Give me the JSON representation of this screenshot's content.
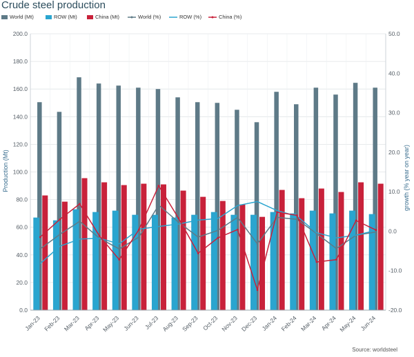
{
  "chart_data": {
    "type": "bar",
    "title": "Crude steel production",
    "source": "Source: worldsteel",
    "categories": [
      "Jan-23",
      "Feb-23",
      "Mar-23",
      "Apr-23",
      "May-23",
      "Jun-23",
      "Jul-23",
      "Aug-23",
      "Sep-23",
      "Oct-23",
      "Nov-23",
      "Dec-23",
      "Jan-24",
      "Feb-24",
      "Mar-24",
      "Apr-24",
      "May-24",
      "Jun-24"
    ],
    "ylabel_left": "Production (Mt)",
    "ylabel_right": "growth (% year on year)",
    "ylim_left": [
      0,
      200
    ],
    "ylim_right": [
      -20,
      50
    ],
    "yticks_left": [
      "0.0",
      "20.0",
      "40.0",
      "60.0",
      "80.0",
      "100.0",
      "120.0",
      "140.0",
      "160.0",
      "180.0",
      "200.0"
    ],
    "yticks_right": [
      "-20.0",
      "-10.0",
      "0.0",
      "10.0",
      "20.0",
      "30.0",
      "40.0",
      "50.0"
    ],
    "bar_series": [
      {
        "name": "World (Mt)",
        "color": "#5e7a87",
        "values": [
          150.5,
          143.5,
          168.5,
          164,
          162.5,
          161,
          160,
          154,
          150.5,
          150,
          145,
          136,
          158,
          149,
          161,
          156,
          164.5,
          161
        ]
      },
      {
        "name": "ROW (Mt)",
        "color": "#2aa5cf",
        "values": [
          67,
          65,
          73,
          71,
          72,
          69,
          69,
          67,
          69,
          71,
          69,
          69,
          71,
          70,
          72,
          70,
          72,
          69.5
        ]
      },
      {
        "name": "China (Mt)",
        "color": "#c8213a",
        "values": [
          83,
          78.5,
          95.5,
          92.5,
          90.5,
          91.5,
          91,
          86.5,
          82,
          79,
          76.5,
          67.5,
          87,
          81,
          88,
          85.5,
          92.5,
          91.5
        ]
      }
    ],
    "line_series": [
      {
        "name": "World (%)",
        "color": "#5e7a87",
        "values": [
          -4.5,
          -0.8,
          2.5,
          -1.8,
          -4.5,
          -1.5,
          6.6,
          2.3,
          -1.5,
          0.2,
          3.5,
          -3.2,
          3.5,
          3.0,
          -0.6,
          -4.4,
          -1.0,
          -0.2
        ]
      },
      {
        "name": "ROW (%)",
        "color": "#2aa5cf",
        "values": [
          -8.2,
          -3.8,
          -2.0,
          -1.8,
          -3.2,
          0.5,
          1.2,
          1.8,
          2.8,
          3.2,
          6.5,
          7.5,
          5.2,
          3.8,
          -0.4,
          -1.7,
          -1.0,
          0.2
        ]
      },
      {
        "name": "China (%)",
        "color": "#c8213a",
        "values": [
          -1.5,
          3.0,
          6.9,
          -1.2,
          -7.2,
          0.4,
          11.5,
          3.3,
          -5.6,
          -1.7,
          0.4,
          -14.9,
          4.8,
          4.0,
          -7.8,
          -7.2,
          2.7,
          0.3
        ]
      }
    ],
    "legend_position": "top-left",
    "grid": true
  }
}
